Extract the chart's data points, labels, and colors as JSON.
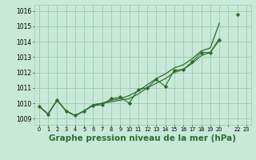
{
  "background_color": "#c8e8d8",
  "grid_color": "#a0c8b0",
  "line_color": "#2d6e2d",
  "title": "Graphe pression niveau de la mer (hPa)",
  "title_fontsize": 7.5,
  "xlim": [
    -0.5,
    23.5
  ],
  "ylim": [
    1008.6,
    1016.4
  ],
  "yticks": [
    1009,
    1010,
    1011,
    1012,
    1013,
    1014,
    1015,
    1016
  ],
  "xtick_labels": [
    "0",
    "1",
    "2",
    "3",
    "4",
    "5",
    "6",
    "7",
    "8",
    "9",
    "10",
    "11",
    "12",
    "13",
    "14",
    "15",
    "16",
    "17",
    "18",
    "19",
    "20",
    "",
    "22",
    "23"
  ],
  "smooth_line1": [
    1009.8,
    1009.3,
    1010.2,
    1009.5,
    1009.2,
    1009.5,
    1009.9,
    1010.0,
    1010.2,
    1010.3,
    1010.5,
    1010.8,
    1011.2,
    1011.6,
    1011.9,
    1012.3,
    1012.5,
    1012.9,
    1013.4,
    1013.6,
    1015.2,
    null,
    1016.2,
    null
  ],
  "smooth_line2": [
    1009.8,
    1009.3,
    1010.2,
    1009.5,
    1009.2,
    1009.5,
    1009.9,
    1010.0,
    1010.1,
    1010.2,
    1010.3,
    1010.6,
    1011.0,
    1011.3,
    1011.6,
    1012.0,
    1012.2,
    1012.6,
    1013.1,
    1013.3,
    1014.2,
    null,
    1015.8,
    null
  ],
  "zigzag_line": [
    1009.8,
    1009.3,
    1010.2,
    1009.5,
    1009.2,
    1009.5,
    1009.85,
    1009.9,
    1010.3,
    1010.4,
    1010.0,
    1010.9,
    1011.0,
    1011.55,
    1011.1,
    1012.15,
    1012.2,
    1012.7,
    1013.3,
    1013.3,
    1014.1,
    null,
    1015.8,
    null
  ]
}
